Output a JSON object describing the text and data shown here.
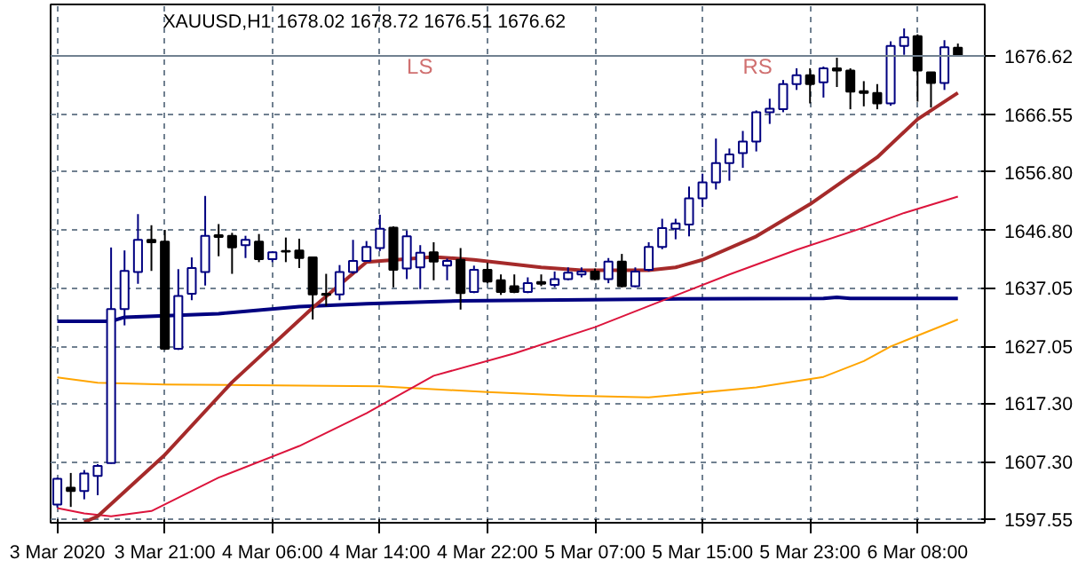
{
  "chart_data": {
    "type": "candlestick",
    "title": "XAUUSD,H1  1678.02 1678.72 1676.51 1676.62",
    "categories": [
      "3 Mar 2020",
      null,
      null,
      null,
      null,
      null,
      null,
      null,
      "3 Mar 21:00",
      null,
      null,
      null,
      null,
      null,
      null,
      null,
      "4 Mar 06:00",
      null,
      null,
      null,
      null,
      null,
      null,
      null,
      "4 Mar 14:00",
      null,
      null,
      null,
      null,
      null,
      null,
      null,
      "4 Mar 22:00",
      null,
      null,
      null,
      null,
      null,
      null,
      null,
      "5 Mar 07:00",
      null,
      null,
      null,
      null,
      null,
      null,
      null,
      "5 Mar 15:00",
      null,
      null,
      null,
      null,
      null,
      null,
      null,
      "5 Mar 23:00",
      null,
      null,
      null,
      null,
      null,
      null,
      null,
      "6 Mar 08:00",
      null,
      null,
      null
    ],
    "ohlc": [
      [
        1600.0,
        1604.6,
        1599.5,
        1604.4
      ],
      [
        1602.9,
        1605.4,
        1599.6,
        1602.3
      ],
      [
        1602.3,
        1605.9,
        1600.9,
        1605.3
      ],
      [
        1604.9,
        1606.9,
        1601.6,
        1606.6
      ],
      [
        1607.1,
        1643.9,
        1607.0,
        1633.4
      ],
      [
        1633.4,
        1643.4,
        1630.6,
        1639.9
      ],
      [
        1639.7,
        1649.6,
        1637.7,
        1645.2
      ],
      [
        1645.2,
        1647.7,
        1639.9,
        1644.8
      ],
      [
        1644.9,
        1646.9,
        1626.4,
        1626.6
      ],
      [
        1626.6,
        1640.2,
        1626.4,
        1635.6
      ],
      [
        1636.0,
        1642.2,
        1634.9,
        1640.4
      ],
      [
        1639.7,
        1652.7,
        1637.4,
        1645.9
      ],
      [
        1646.0,
        1647.9,
        1642.4,
        1645.7
      ],
      [
        1645.9,
        1646.4,
        1639.4,
        1643.9
      ],
      [
        1644.3,
        1645.9,
        1642.1,
        1645.2
      ],
      [
        1644.9,
        1646.2,
        1641.4,
        1641.9
      ],
      [
        1641.9,
        1643.2,
        1641.4,
        1643.1
      ],
      [
        1643.3,
        1645.6,
        1641.4,
        1643.2
      ],
      [
        1643.4,
        1645.4,
        1640.4,
        1642.1
      ],
      [
        1642.2,
        1642.3,
        1631.6,
        1635.9
      ],
      [
        1636.0,
        1639.4,
        1633.9,
        1635.8
      ],
      [
        1635.9,
        1640.9,
        1634.9,
        1639.7
      ],
      [
        1639.7,
        1645.2,
        1639.4,
        1641.6
      ],
      [
        1641.6,
        1645.0,
        1641.5,
        1644.0
      ],
      [
        1643.8,
        1649.5,
        1643.3,
        1647.1
      ],
      [
        1647.3,
        1647.5,
        1637.1,
        1640.1
      ],
      [
        1640.3,
        1646.8,
        1638.5,
        1645.8
      ],
      [
        1640.5,
        1644.3,
        1636.8,
        1643.0
      ],
      [
        1643.1,
        1644.8,
        1638.3,
        1641.5
      ],
      [
        1640.8,
        1642.0,
        1638.3,
        1641.6
      ],
      [
        1641.8,
        1643.8,
        1633.3,
        1636.1
      ],
      [
        1636.3,
        1640.8,
        1636.1,
        1640.1
      ],
      [
        1640.1,
        1641.3,
        1637.8,
        1638.1
      ],
      [
        1638.3,
        1639.3,
        1635.8,
        1636.3
      ],
      [
        1637.3,
        1639.3,
        1636.1,
        1636.3
      ],
      [
        1636.3,
        1638.8,
        1636.1,
        1637.8
      ],
      [
        1638.0,
        1639.3,
        1637.3,
        1637.7
      ],
      [
        1637.5,
        1639.8,
        1637.1,
        1638.5
      ],
      [
        1638.5,
        1640.5,
        1638.3,
        1639.6
      ],
      [
        1639.3,
        1640.5,
        1638.8,
        1639.8
      ],
      [
        1639.8,
        1640.3,
        1638.3,
        1638.5
      ],
      [
        1638.5,
        1642.1,
        1637.8,
        1641.5
      ],
      [
        1641.5,
        1642.8,
        1637.1,
        1637.3
      ],
      [
        1637.3,
        1640.5,
        1637.1,
        1639.8
      ],
      [
        1640.1,
        1644.8,
        1639.8,
        1644.0
      ],
      [
        1644.0,
        1648.8,
        1643.6,
        1647.2
      ],
      [
        1647.1,
        1648.8,
        1645.3,
        1648.0
      ],
      [
        1647.8,
        1654.3,
        1645.8,
        1652.3
      ],
      [
        1652.3,
        1656.5,
        1650.8,
        1655.0
      ],
      [
        1655.0,
        1662.5,
        1653.8,
        1658.3
      ],
      [
        1658.3,
        1660.8,
        1655.3,
        1659.8
      ],
      [
        1660.0,
        1663.8,
        1657.5,
        1662.0
      ],
      [
        1662.0,
        1667.3,
        1660.3,
        1667.0
      ],
      [
        1667.0,
        1669.3,
        1665.0,
        1667.6
      ],
      [
        1667.5,
        1672.5,
        1667.0,
        1671.8
      ],
      [
        1671.8,
        1674.5,
        1670.8,
        1673.3
      ],
      [
        1673.3,
        1674.5,
        1668.5,
        1671.8
      ],
      [
        1672.1,
        1674.8,
        1669.5,
        1674.5
      ],
      [
        1674.5,
        1676.3,
        1671.3,
        1674.1
      ],
      [
        1674.1,
        1674.5,
        1667.5,
        1670.5
      ],
      [
        1670.6,
        1672.3,
        1668.0,
        1670.3
      ],
      [
        1670.3,
        1671.8,
        1667.5,
        1668.5
      ],
      [
        1668.5,
        1679.1,
        1668.1,
        1678.3
      ],
      [
        1678.3,
        1681.3,
        1676.8,
        1679.8
      ],
      [
        1680.0,
        1680.3,
        1668.8,
        1674.1
      ],
      [
        1673.8,
        1673.8,
        1667.8,
        1672.0
      ],
      [
        1672.0,
        1679.3,
        1670.8,
        1678.1
      ],
      [
        1678.02,
        1678.72,
        1676.51,
        1676.62
      ]
    ],
    "colors": [
      "#000080",
      "#000000",
      "#000080",
      "#000080",
      "#000080",
      "#000080",
      "#000080",
      "#000000",
      "#000000",
      "#000080",
      "#000080",
      "#000080",
      "#000000",
      "#000000",
      "#000080",
      "#000000",
      "#000080",
      "#000000",
      "#000000",
      "#000000",
      "#000000",
      "#000080",
      "#000080",
      "#000080",
      "#000080",
      "#000000",
      "#000080",
      "#000080",
      "#000000",
      "#000080",
      "#000000",
      "#000080",
      "#000000",
      "#000000",
      "#000000",
      "#000080",
      "#000000",
      "#000080",
      "#000080",
      "#000080",
      "#000000",
      "#000080",
      "#000000",
      "#000080",
      "#000080",
      "#000080",
      "#000080",
      "#000080",
      "#000080",
      "#000080",
      "#000080",
      "#000080",
      "#000080",
      "#000080",
      "#000080",
      "#000080",
      "#000000",
      "#000080",
      "#000000",
      "#000000",
      "#000000",
      "#000000",
      "#000080",
      "#000080",
      "#000000",
      "#000000",
      "#000080",
      "#000000"
    ],
    "series": [
      {
        "type": "line",
        "color": "#000080",
        "values": [
          1631.3,
          null,
          null,
          null,
          1631.3,
          1632.0,
          null,
          null,
          null,
          null,
          null,
          null,
          1632.6,
          null,
          null,
          null,
          null,
          null,
          1633.8,
          null,
          null,
          null,
          null,
          1634.3,
          null,
          null,
          null,
          null,
          null,
          null,
          1634.8,
          null,
          null,
          null,
          null,
          null,
          null,
          null,
          null,
          null,
          null,
          null,
          null,
          null,
          null,
          1635.1,
          null,
          null,
          null,
          null,
          null,
          null,
          null,
          null,
          null,
          null,
          null,
          1635.2,
          1635.4,
          1635.2,
          null,
          null,
          null,
          null,
          null,
          null,
          null,
          1635.2
        ]
      },
      {
        "type": "line",
        "color": "#ffa500",
        "values": [
          1621.7,
          null,
          null,
          1620.8,
          null,
          null,
          null,
          null,
          1620.5,
          null,
          null,
          null,
          null,
          null,
          null,
          null,
          null,
          null,
          null,
          null,
          null,
          null,
          null,
          null,
          1620.2,
          null,
          null,
          null,
          null,
          null,
          null,
          null,
          1619.2,
          null,
          null,
          null,
          null,
          null,
          1618.6,
          null,
          null,
          null,
          null,
          null,
          1618.3,
          null,
          null,
          null,
          null,
          null,
          null,
          null,
          1620.0,
          null,
          null,
          null,
          null,
          1621.8,
          null,
          null,
          1624.5,
          null,
          1627.0,
          null,
          null,
          null,
          null,
          1631.6
        ]
      },
      {
        "type": "line",
        "color": "#dc143c",
        "values": [
          1599.4,
          null,
          1598.5,
          null,
          1598.0,
          null,
          null,
          1598.9,
          null,
          null,
          null,
          null,
          1604.6,
          null,
          null,
          null,
          null,
          null,
          1610.0,
          null,
          null,
          null,
          null,
          1615.6,
          null,
          null,
          null,
          null,
          1622.0,
          null,
          null,
          null,
          null,
          null,
          1625.8,
          null,
          null,
          null,
          null,
          null,
          1630.3,
          null,
          null,
          null,
          null,
          1634.8,
          null,
          null,
          null,
          null,
          1639.3,
          null,
          null,
          null,
          null,
          1643.5,
          null,
          null,
          null,
          null,
          1647.3,
          null,
          null,
          1649.8,
          null,
          null,
          null,
          1652.6
        ]
      },
      {
        "type": "line",
        "color": "#a52a2a",
        "values": [
          null,
          null,
          1597.0,
          1598.0,
          null,
          null,
          null,
          null,
          1608.5,
          null,
          null,
          null,
          null,
          1620.9,
          null,
          null,
          null,
          null,
          null,
          1633.6,
          null,
          null,
          null,
          1641.4,
          null,
          null,
          null,
          null,
          1642.3,
          null,
          null,
          1641.8,
          null,
          null,
          null,
          null,
          1640.5,
          null,
          null,
          1640.0,
          null,
          null,
          null,
          null,
          1640.0,
          null,
          1640.5,
          null,
          1641.8,
          null,
          null,
          null,
          1645.8,
          null,
          null,
          null,
          1651.3,
          null,
          null,
          null,
          null,
          1659.3,
          null,
          null,
          1665.8,
          null,
          null,
          1670.3
        ]
      }
    ],
    "ylim": [
      1596.9,
      1685.4
    ],
    "yticks": [
      {
        "value": 1597.55,
        "label": "1597.55"
      },
      {
        "value": 1607.3,
        "label": "1607.30"
      },
      {
        "value": 1617.3,
        "label": "1617.30"
      },
      {
        "value": 1627.05,
        "label": "1627.05"
      },
      {
        "value": 1637.05,
        "label": "1637.05"
      },
      {
        "value": 1646.8,
        "label": "1646.80"
      },
      {
        "value": 1656.8,
        "label": "1656.80"
      },
      {
        "value": 1666.55,
        "label": "1666.55"
      }
    ],
    "ref_lines": [
      {
        "axis": "y",
        "value": 1676.62,
        "label": "1676.62",
        "color": "#708090"
      }
    ],
    "annotations": [
      "LS",
      "RS"
    ],
    "grid": true
  }
}
